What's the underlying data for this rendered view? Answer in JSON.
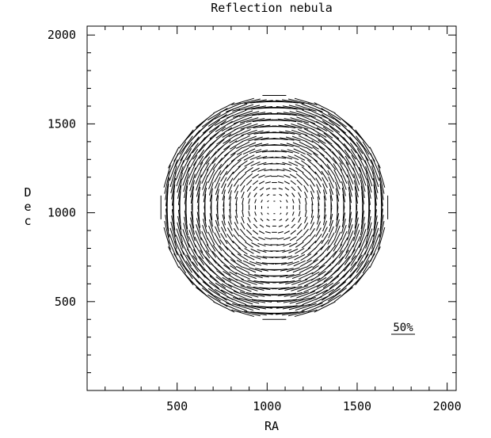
{
  "chart_data": {
    "type": "vector-field",
    "title": "Reflection nebula",
    "xlabel": "RA",
    "ylabel": "Dec",
    "xlim": [
      0,
      2050
    ],
    "ylim": [
      0,
      2050
    ],
    "xticks": [
      500,
      1000,
      1500,
      2000
    ],
    "yticks": [
      500,
      1000,
      1500,
      2000
    ],
    "x_minor_step": 100,
    "y_minor_step": 100,
    "grid": false,
    "field": {
      "center": [
        1040,
        1030
      ],
      "radius": 630,
      "grid_step": 35,
      "vector_orientation": "tangential (perpendicular to radius)",
      "max_polarization_percent": 50,
      "polarization_profile": "linear with radius"
    },
    "scale_bar": {
      "label": "50%",
      "value_percent": 50
    }
  }
}
